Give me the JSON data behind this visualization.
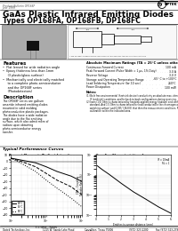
{
  "title_line1": "GaAs Plastic Infrared Emitting Diodes",
  "title_line2": "Types OP168FA, OP168FB, DP168FC",
  "product_bulletin": "Product Bulletin OP168F",
  "date": "June 1999",
  "background_color": "#ffffff",
  "features_title": "Features",
  "features": [
    "Flat lensed for wide radiation angle",
    "Epoxy thickness less than 1mm",
    "(3 plastic/glass surface)",
    "Mechanically and electrically matched",
    "to a complete photo-semiconductor",
    "and the OP168F series",
    "(Photodetectors)"
  ],
  "description_title": "Description",
  "description_text": "The OP168F series are gallium arsenide infrared emitting diodes mounted in solid molding photoconductive plastic packages. The diodes have a wide radiation angle due to the flat emitting surface, which also admit more of radiant upon obtaining photo-semiconductor energy transfer.",
  "abs_max_title": "Absolute Maximum Ratings (TA = 25°C unless otherwise noted)",
  "ratings": [
    [
      "Continuous Forward Current",
      "100 mA"
    ],
    [
      "Peak Forward Current (Pulse Width = 1 μs, 1% Duty)",
      "3.0 A"
    ],
    [
      "Reverse Voltage",
      "3.0 V"
    ],
    [
      "Storage and Operating Temperature Range",
      "-65° C to +100°C"
    ],
    [
      "Lead Soldering Temperature (for 10 sec)",
      "260°C"
    ],
    [
      "Power Dissipation",
      "100 mW"
    ]
  ],
  "notes": [
    "Notes:",
    "(1) Both free-environmental (heatsink device) conductivity on absolute max, ohm-free",
    "     IR (ambient) conditions, and for back-to-back configurations during receiving.",
    "(2) Irwin (1.0) Ohm is characterized by heatsink applied energy (radiant) and conforming",
    "     standard. And 1.5 Ohm is characterized for lead conducted in the chromogen and its",
    "     switching surface' and 0.385' (36.8 K) that then the measurement conditions. Return 5 mm",
    "     calibration within the indicated area."
  ],
  "typical_title": "Typical Performance Curves",
  "chart1_title": "Percent Change in Radiant Intensity\nvs. Time",
  "chart2_title": "Coupling Characteristics of\nOP168F and OP598/OP598B/OP889",
  "footer_company": "Optek Technology, Inc.",
  "footer_address": "1215 W. Sandy Lake Road",
  "footer_city": "Carrollton, Texas 75006",
  "footer_phone": "(972) 323-2200",
  "footer_fax": "Fax (972) 323-2396",
  "footer_page": "1-18"
}
